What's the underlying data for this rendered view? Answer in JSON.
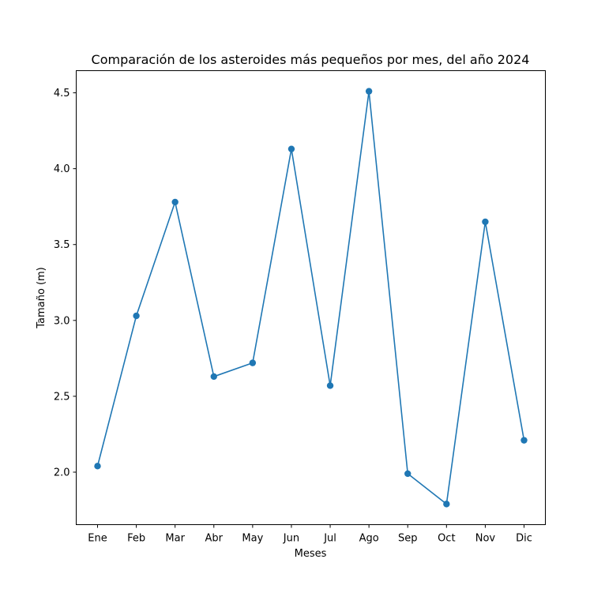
{
  "chart_data": {
    "type": "line",
    "title": "Comparación de los asteroides más pequeños por mes, del año 2024",
    "xlabel": "Meses",
    "ylabel": "Tamaño (m)",
    "categories": [
      "Ene",
      "Feb",
      "Mar",
      "Abr",
      "May",
      "Jun",
      "Jul",
      "Ago",
      "Sep",
      "Oct",
      "Nov",
      "Dic"
    ],
    "series": [
      {
        "values": [
          2.04,
          3.03,
          3.78,
          2.63,
          2.72,
          4.13,
          2.57,
          4.51,
          1.99,
          1.79,
          3.65,
          2.21
        ],
        "color": "#1f77b4",
        "marker": "circle"
      }
    ],
    "yticks": [
      2.0,
      2.5,
      3.0,
      3.5,
      4.0,
      4.5
    ],
    "ytick_labels": [
      "2.0",
      "2.5",
      "3.0",
      "3.5",
      "4.0",
      "4.5"
    ],
    "ylim": [
      1.654,
      4.646
    ],
    "grid": false,
    "legend": "none"
  }
}
